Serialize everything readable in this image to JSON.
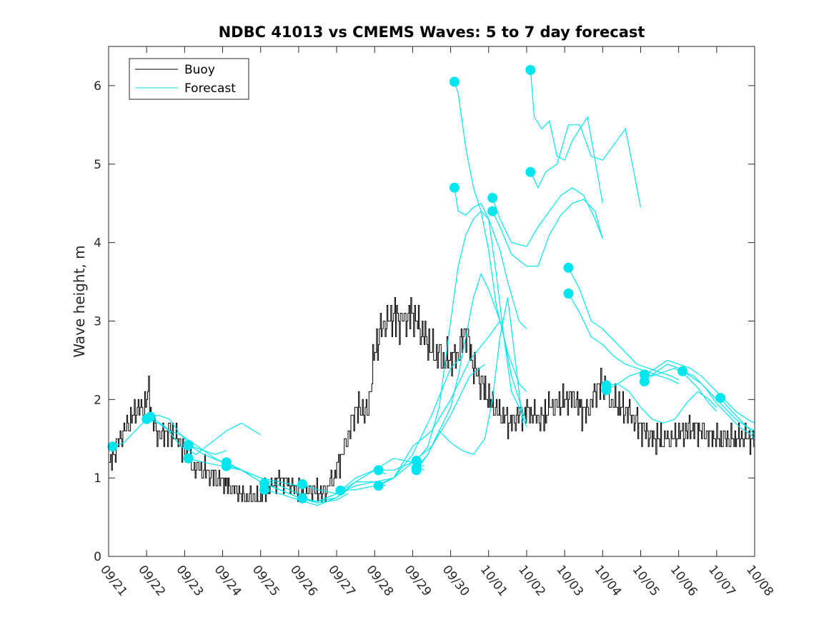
{
  "chart_data": {
    "type": "line",
    "title": "NDBC 41013 vs CMEMS Waves: 5 to 7 day forecast",
    "xlabel": "",
    "ylabel": "Wave height, m",
    "xlim": [
      0,
      17
    ],
    "ylim": [
      0,
      6.5
    ],
    "x_ticks": [
      0,
      1,
      2,
      3,
      4,
      5,
      6,
      7,
      8,
      9,
      10,
      11,
      12,
      13,
      14,
      15,
      16,
      17
    ],
    "x_tick_labels": [
      "09/21",
      "09/22",
      "09/23",
      "09/24",
      "09/25",
      "09/26",
      "09/27",
      "09/28",
      "09/29",
      "09/30",
      "10/01",
      "10/02",
      "10/03",
      "10/04",
      "10/05",
      "10/06",
      "10/07",
      "10/08"
    ],
    "y_ticks": [
      0,
      1,
      2,
      3,
      4,
      5,
      6
    ],
    "y_tick_labels": [
      "0",
      "1",
      "2",
      "3",
      "4",
      "5",
      "6"
    ],
    "x_units": "days since 09/21",
    "legend": {
      "position": "top-left",
      "entries": [
        "Buoy",
        "Forecast"
      ]
    },
    "colors": {
      "buoy": "#000000",
      "forecast": "#00e5ee"
    },
    "series": [
      {
        "name": "Buoy",
        "x": [
          0,
          0.15,
          0.3,
          0.5,
          0.7,
          0.9,
          1.05,
          1.15,
          1.25,
          1.4,
          1.6,
          1.8,
          2.0,
          2.2,
          2.5,
          2.8,
          3.0,
          3.3,
          3.6,
          3.9,
          4.2,
          4.5,
          4.8,
          5.0,
          5.2,
          5.4,
          5.6,
          5.8,
          6.0,
          6.2,
          6.5,
          6.8,
          7.0,
          7.2,
          7.5,
          7.8,
          8.0,
          8.2,
          8.4,
          8.6,
          8.8,
          9.0,
          9.2,
          9.4,
          9.6,
          9.8,
          10.0,
          10.2,
          10.4,
          10.6,
          10.8,
          11.0,
          11.2,
          11.4,
          11.6,
          11.8,
          12.0,
          12.2,
          12.4,
          12.6,
          12.8,
          13.0,
          13.2,
          13.5,
          13.8,
          14.0,
          14.2,
          14.5,
          14.8,
          15.0,
          15.2,
          15.5,
          15.8,
          16.0,
          16.2,
          16.5,
          16.8,
          17.0
        ],
        "values": [
          1.1,
          1.35,
          1.5,
          1.7,
          1.85,
          1.9,
          2.1,
          1.75,
          1.6,
          1.55,
          1.6,
          1.5,
          1.3,
          1.15,
          1.1,
          1.0,
          0.95,
          0.85,
          0.75,
          0.75,
          0.85,
          1.0,
          0.9,
          0.85,
          0.8,
          0.85,
          0.8,
          0.9,
          1.1,
          1.4,
          1.9,
          1.8,
          2.6,
          2.95,
          3.05,
          3.0,
          3.1,
          2.9,
          2.7,
          2.6,
          2.5,
          2.5,
          2.6,
          2.9,
          2.4,
          2.2,
          2.0,
          1.85,
          1.75,
          1.7,
          1.8,
          1.85,
          1.8,
          1.75,
          1.9,
          1.9,
          2.0,
          2.05,
          1.9,
          1.85,
          2.1,
          2.2,
          2.0,
          1.9,
          1.75,
          1.65,
          1.55,
          1.5,
          1.5,
          1.55,
          1.6,
          1.65,
          1.55,
          1.5,
          1.5,
          1.5,
          1.5,
          1.5
        ]
      },
      {
        "name": "Forecast",
        "runs": [
          {
            "x": [
              0.1,
              0.4,
              0.7,
              1.0,
              1.3,
              1.6,
              1.9,
              2.2,
              2.5,
              2.8,
              3.1
            ],
            "values": [
              1.4,
              1.45,
              1.6,
              1.75,
              1.8,
              1.75,
              1.55,
              1.4,
              1.35,
              1.3,
              1.35
            ]
          },
          {
            "x": [
              1.0,
              1.3,
              1.6,
              1.9,
              2.2,
              2.5,
              2.8,
              3.0
            ],
            "values": [
              1.75,
              1.7,
              1.6,
              1.55,
              1.45,
              1.35,
              1.25,
              1.2
            ]
          },
          {
            "x": [
              1.1,
              1.5,
              1.9,
              2.3,
              2.7,
              3.1,
              3.5,
              4.0
            ],
            "values": [
              1.78,
              1.65,
              1.4,
              1.3,
              1.45,
              1.6,
              1.7,
              1.55
            ]
          },
          {
            "x": [
              2.1,
              2.5,
              3.0,
              3.5,
              4.0,
              4.5,
              5.0,
              5.2
            ],
            "values": [
              1.42,
              1.3,
              1.2,
              1.1,
              1.0,
              0.95,
              0.9,
              0.9
            ]
          },
          {
            "x": [
              2.1,
              2.5,
              3.0,
              3.5,
              4.0,
              4.5,
              5.0,
              5.2
            ],
            "values": [
              1.25,
              1.2,
              1.15,
              1.1,
              1.0,
              0.9,
              0.8,
              0.8
            ]
          },
          {
            "x": [
              3.1,
              3.5,
              4.0,
              4.5,
              5.0,
              5.5,
              6.0,
              6.3
            ],
            "values": [
              1.2,
              1.1,
              0.95,
              0.85,
              0.75,
              0.68,
              0.72,
              0.8
            ]
          },
          {
            "x": [
              3.1,
              3.5,
              4.0,
              4.5,
              5.0,
              5.5,
              6.0,
              6.3
            ],
            "values": [
              1.15,
              1.1,
              0.95,
              0.85,
              0.75,
              0.7,
              0.75,
              0.85
            ]
          },
          {
            "x": [
              4.1,
              4.5,
              5.0,
              5.5,
              6.0,
              6.5,
              7.0,
              7.3
            ],
            "values": [
              0.93,
              0.85,
              0.75,
              0.7,
              0.8,
              1.0,
              1.1,
              1.05
            ]
          },
          {
            "x": [
              4.1,
              4.5,
              5.0,
              5.5,
              6.0,
              6.5,
              7.0,
              7.3
            ],
            "values": [
              0.85,
              0.8,
              0.72,
              0.65,
              0.75,
              0.95,
              0.95,
              0.9
            ]
          },
          {
            "x": [
              5.1,
              5.5,
              6.0,
              6.5,
              7.0,
              7.5,
              8.0,
              8.3
            ],
            "values": [
              0.92,
              0.85,
              0.8,
              0.95,
              1.1,
              1.25,
              1.2,
              1.1
            ]
          },
          {
            "x": [
              5.1,
              5.5,
              6.0,
              6.5,
              7.0,
              7.5,
              8.0,
              8.3
            ],
            "values": [
              0.74,
              0.7,
              0.8,
              0.9,
              0.95,
              1.0,
              1.2,
              1.15
            ]
          },
          {
            "x": [
              6.1,
              6.5,
              7.0,
              7.5,
              8.0,
              8.5,
              9.0,
              9.3
            ],
            "values": [
              0.84,
              0.85,
              0.9,
              1.0,
              1.3,
              1.8,
              2.4,
              2.55
            ]
          },
          {
            "x": [
              7.1,
              7.5,
              8.0,
              8.5,
              9.0,
              9.5,
              9.9
            ],
            "values": [
              1.1,
              1.1,
              1.2,
              1.4,
              1.8,
              2.3,
              2.45
            ]
          },
          {
            "x": [
              7.1,
              7.5,
              8.0,
              8.5,
              9.0,
              9.5,
              10.0,
              10.3
            ],
            "values": [
              0.9,
              1.0,
              1.4,
              1.6,
              2.0,
              2.5,
              2.8,
              3.0
            ]
          },
          {
            "x": [
              8.1,
              8.4,
              8.7,
              9.0,
              9.2,
              9.4,
              9.6,
              9.8,
              10.0,
              10.3,
              10.5,
              10.8,
              11.0
            ],
            "values": [
              1.22,
              1.4,
              1.9,
              3.0,
              3.7,
              4.1,
              4.3,
              4.4,
              4.3,
              3.9,
              3.5,
              3.0,
              2.9
            ]
          },
          {
            "x": [
              8.1,
              8.4,
              8.7,
              9.0,
              9.2,
              9.4,
              9.6,
              9.8,
              10.0,
              10.3,
              10.5,
              10.8,
              11.0
            ],
            "values": [
              1.13,
              1.3,
              1.6,
              1.9,
              2.3,
              2.8,
              3.3,
              3.6,
              3.4,
              3.0,
              2.6,
              2.2,
              2.1
            ]
          },
          {
            "x": [
              8.1,
              8.4,
              8.7,
              9.0,
              9.3,
              9.6,
              9.9,
              10.1,
              10.3,
              10.5,
              10.7,
              10.9
            ],
            "values": [
              1.1,
              1.3,
              1.6,
              1.45,
              1.35,
              1.3,
              1.5,
              2.0,
              2.8,
              3.3,
              2.5,
              1.7
            ]
          },
          {
            "x": [
              9.1,
              9.2,
              9.4,
              9.6,
              9.8,
              10.0,
              10.2,
              10.4,
              10.6,
              10.8,
              11.0
            ],
            "values": [
              4.7,
              4.4,
              4.35,
              4.45,
              4.5,
              4.3,
              3.6,
              2.8,
              2.1,
              1.9,
              1.65
            ]
          },
          {
            "x": [
              9.1,
              9.2,
              9.4,
              9.6,
              9.8,
              10.0,
              10.2,
              10.4,
              10.6,
              10.8,
              11.0
            ],
            "values": [
              6.05,
              5.9,
              5.2,
              4.7,
              4.4,
              3.9,
              3.2,
              2.8,
              2.3,
              2.0,
              1.7
            ]
          },
          {
            "x": [
              10.1,
              10.3,
              10.6,
              11.0,
              11.3,
              11.6,
              11.9,
              12.2,
              12.5,
              12.8,
              13.0
            ],
            "values": [
              4.57,
              4.3,
              4.0,
              3.95,
              4.2,
              4.4,
              4.6,
              4.7,
              4.6,
              4.3,
              4.05
            ]
          },
          {
            "x": [
              10.1,
              10.3,
              10.6,
              11.0,
              11.3,
              11.6,
              11.9,
              12.2,
              12.5,
              12.8,
              13.0
            ],
            "values": [
              4.4,
              4.2,
              3.85,
              3.7,
              3.7,
              4.1,
              4.35,
              4.5,
              4.55,
              4.4,
              4.05
            ]
          },
          {
            "x": [
              11.1,
              11.3,
              11.5,
              11.8,
              12.1,
              12.4,
              12.7,
              13.0,
              13.3,
              13.6,
              14.0
            ],
            "values": [
              4.9,
              4.7,
              4.9,
              5.0,
              5.5,
              5.5,
              5.1,
              5.05,
              5.25,
              5.45,
              4.45
            ]
          },
          {
            "x": [
              11.1,
              11.2,
              11.4,
              11.6,
              11.8,
              12.0,
              12.2,
              12.4,
              12.6,
              12.8,
              13.0
            ],
            "values": [
              6.2,
              5.6,
              5.45,
              5.55,
              5.1,
              5.05,
              5.3,
              5.45,
              5.6,
              5.05,
              4.5
            ]
          },
          {
            "x": [
              12.1,
              12.4,
              12.7,
              13.0,
              13.3,
              13.6,
              13.9,
              14.2,
              14.5,
              14.8,
              15.0
            ],
            "values": [
              3.68,
              3.4,
              3.0,
              2.9,
              2.75,
              2.6,
              2.45,
              2.4,
              2.35,
              2.3,
              2.25
            ]
          },
          {
            "x": [
              12.1,
              12.4,
              12.7,
              13.0,
              13.3,
              13.6,
              13.9,
              14.2,
              14.5,
              14.8,
              15.0
            ],
            "values": [
              3.35,
              3.1,
              2.8,
              2.7,
              2.55,
              2.45,
              2.4,
              2.35,
              2.3,
              2.25,
              2.2
            ]
          },
          {
            "x": [
              13.1,
              13.4,
              13.7,
              14.0,
              14.3,
              14.6,
              14.9,
              15.2,
              15.5,
              15.8,
              16.0
            ],
            "values": [
              2.12,
              2.2,
              2.1,
              1.9,
              1.75,
              1.7,
              1.75,
              1.95,
              2.1,
              2.0,
              1.9
            ]
          },
          {
            "x": [
              13.1,
              13.4,
              13.7,
              14.0,
              14.3,
              14.6,
              14.9,
              15.2,
              15.5,
              15.8,
              16.0
            ],
            "values": [
              2.18,
              2.2,
              2.3,
              2.35,
              2.3,
              2.35,
              2.4,
              2.3,
              2.15,
              1.95,
              1.85
            ]
          },
          {
            "x": [
              14.1,
              14.4,
              14.7,
              15.0,
              15.3,
              15.6,
              15.9,
              16.2,
              16.5,
              16.8,
              17.0
            ],
            "values": [
              2.23,
              2.35,
              2.45,
              2.4,
              2.3,
              2.2,
              2.05,
              1.9,
              1.75,
              1.65,
              1.6
            ]
          },
          {
            "x": [
              14.1,
              14.4,
              14.7,
              15.0,
              15.3,
              15.6,
              15.9,
              16.2,
              16.5,
              16.8,
              17.0
            ],
            "values": [
              2.32,
              2.4,
              2.5,
              2.45,
              2.4,
              2.3,
              2.15,
              2.0,
              1.85,
              1.75,
              1.7
            ]
          },
          {
            "x": [
              15.1,
              15.4,
              15.7,
              16.0,
              16.3,
              16.6,
              16.9,
              17.0
            ],
            "values": [
              2.36,
              2.3,
              2.15,
              1.95,
              1.8,
              1.65,
              1.55,
              1.5
            ]
          },
          {
            "x": [
              16.1,
              16.3,
              16.5,
              16.7,
              16.9,
              17.0
            ],
            "values": [
              2.02,
              1.9,
              1.8,
              1.7,
              1.6,
              1.55
            ]
          }
        ]
      }
    ],
    "forecast_start_markers": {
      "x": [
        0.1,
        1.0,
        1.1,
        2.1,
        2.1,
        3.1,
        3.1,
        4.1,
        4.1,
        5.1,
        5.1,
        6.1,
        7.1,
        7.1,
        8.1,
        8.1,
        8.1,
        9.1,
        9.1,
        10.1,
        10.1,
        11.1,
        11.1,
        12.1,
        12.1,
        13.1,
        13.1,
        14.1,
        14.1,
        15.1,
        16.1
      ],
      "values": [
        1.4,
        1.75,
        1.78,
        1.42,
        1.25,
        1.2,
        1.15,
        0.93,
        0.85,
        0.92,
        0.74,
        0.84,
        1.1,
        0.9,
        1.22,
        1.13,
        1.1,
        4.7,
        6.05,
        4.57,
        4.4,
        4.9,
        6.2,
        3.68,
        3.35,
        2.12,
        2.18,
        2.23,
        2.32,
        2.36,
        2.02
      ]
    }
  }
}
